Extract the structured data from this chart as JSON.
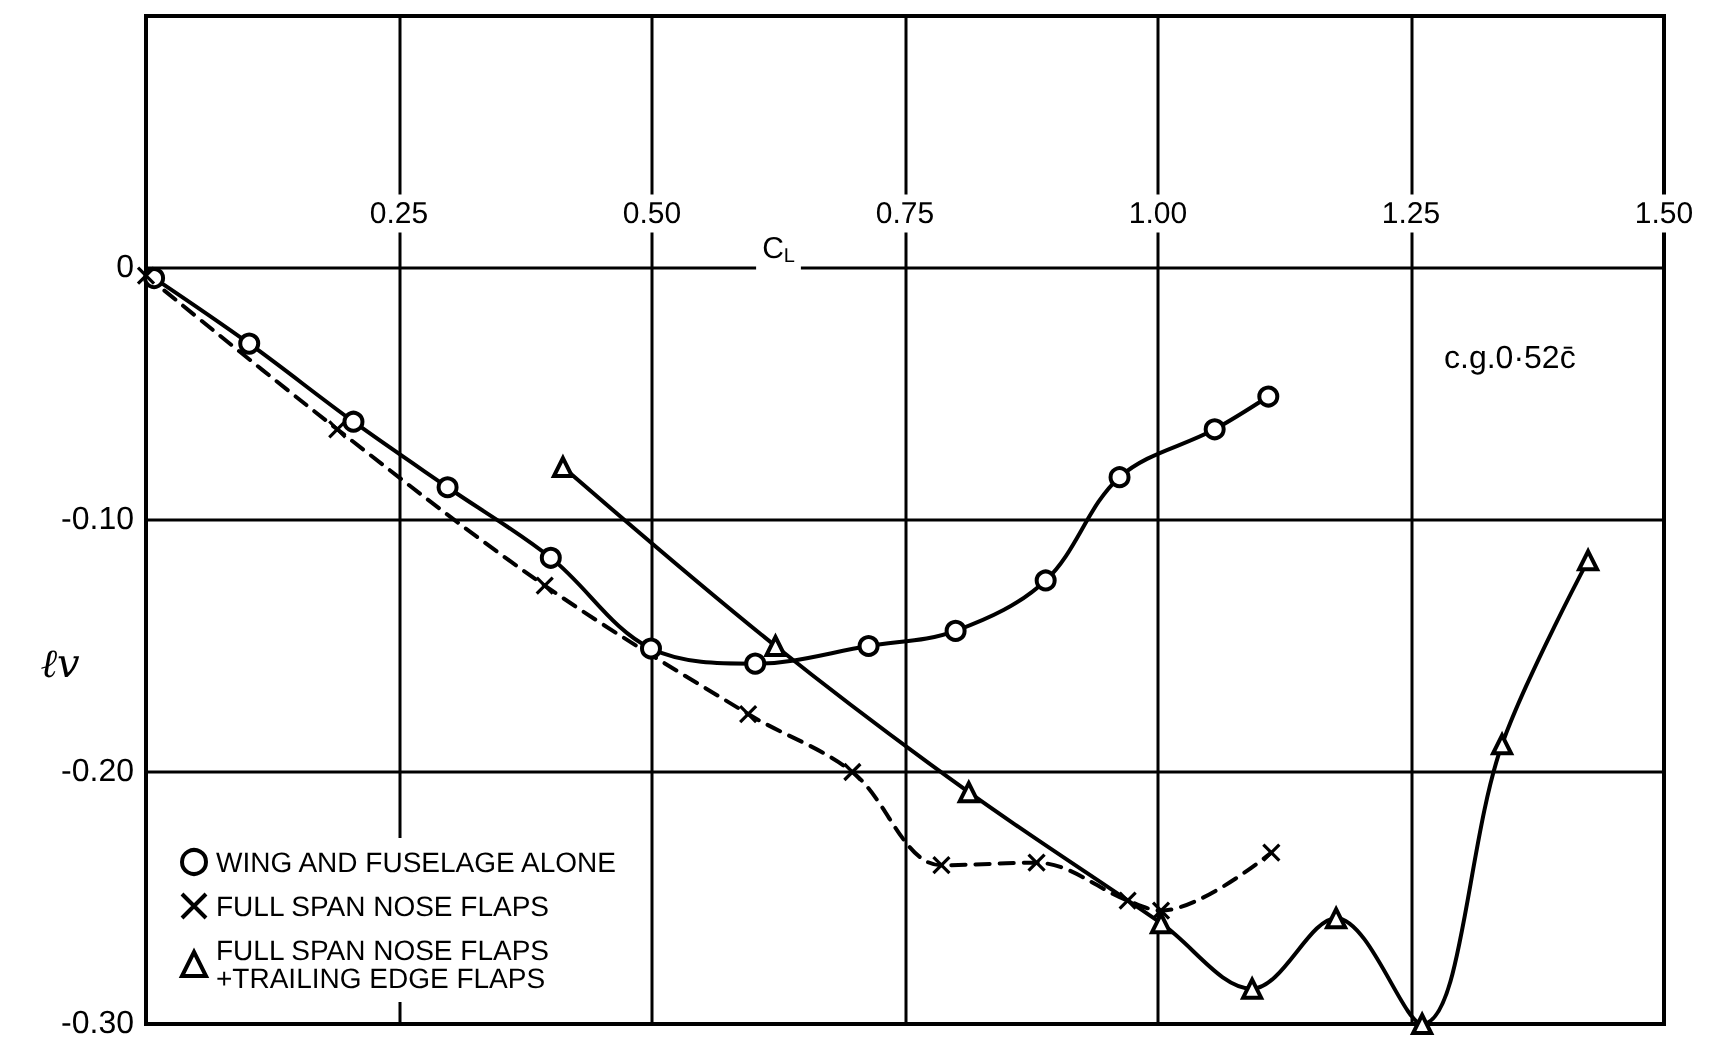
{
  "chart_data": {
    "type": "line",
    "xlabel": "C$_{L}$",
    "ylabel": "ℓv",
    "annotations": [
      "c.g.0·52c̄"
    ],
    "xlim": [
      0,
      1.5
    ],
    "ylim": [
      -0.3,
      0.1
    ],
    "xticks": [
      0.25,
      {
        "value": 0.5,
        "label": "0.50"
      },
      0.75,
      {
        "value": 1.0,
        "label": "1.00"
      },
      1.25,
      {
        "value": 1.5,
        "label": "1.50"
      }
    ],
    "yticks": [
      0,
      {
        "value": -0.1,
        "label": "-0.10"
      },
      {
        "value": -0.2,
        "label": "-0.20"
      },
      {
        "value": -0.3,
        "label": "-0.30"
      }
    ],
    "grid": true,
    "legend": "bottom left",
    "series": [
      {
        "name": "WING AND FUSELAGE ALONE",
        "color": "#000000",
        "marker": "circle",
        "line_style": "solid",
        "x": [
          0.008,
          0.102,
          0.205,
          0.298,
          0.4,
          0.499,
          0.602,
          0.714,
          0.8,
          0.889,
          0.962,
          1.056,
          1.109
        ],
        "values": [
          -0.004,
          -0.03,
          -0.061,
          -0.087,
          -0.115,
          -0.151,
          -0.157,
          -0.15,
          -0.144,
          -0.124,
          -0.083,
          -0.064,
          -0.051
        ]
      },
      {
        "name": "FULL SPAN NOSE FLAPS",
        "color": "#000000",
        "marker": "cross",
        "line_style": "dashed",
        "x": [
          0.0,
          0.189,
          0.394,
          0.595,
          0.698,
          0.786,
          0.88,
          0.97,
          1.003,
          1.112
        ],
        "values": [
          -0.003,
          -0.064,
          -0.126,
          -0.177,
          -0.2,
          -0.237,
          -0.236,
          -0.251,
          -0.255,
          -0.232
        ]
      },
      {
        "name": "FULL SPAN NOSE FLAPS\n+TRAILING EDGE FLAPS",
        "color": "#000000",
        "marker": "triangle",
        "line_style": "solid",
        "x": [
          0.412,
          0.622,
          0.813,
          1.003,
          1.093,
          1.176,
          1.261,
          1.34,
          1.425
        ],
        "values": [
          -0.079,
          -0.15,
          -0.208,
          -0.26,
          -0.286,
          -0.258,
          -0.3,
          -0.189,
          -0.116
        ]
      }
    ]
  }
}
